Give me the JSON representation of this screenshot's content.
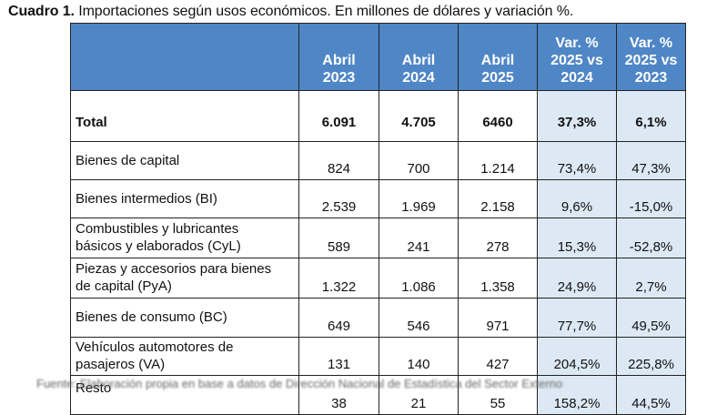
{
  "title": {
    "label": "Cuadro 1.",
    "text": " Importaciones según usos económicos. En millones de dólares y variación %."
  },
  "table": {
    "headers": [
      {
        "line1": "Abril",
        "line2": "2023"
      },
      {
        "line1": "Abril",
        "line2": "2024"
      },
      {
        "line1": "Abril",
        "line2": "2025"
      },
      {
        "line1": "Var. %",
        "line2": "2025 vs",
        "line3": "2024"
      },
      {
        "line1": "Var. %",
        "line2": "2025 vs",
        "line3": "2023"
      }
    ],
    "rows": [
      {
        "label": "Total",
        "v2023": "6.091",
        "v2024": "4.705",
        "v2025": "6460",
        "var24": "37,3%",
        "var23": "6,1%"
      },
      {
        "label": "Bienes de capital",
        "v2023": "824",
        "v2024": "700",
        "v2025": "1.214",
        "var24": "73,4%",
        "var23": "47,3%"
      },
      {
        "label": "Bienes intermedios (BI)",
        "v2023": "2.539",
        "v2024": "1.969",
        "v2025": "2.158",
        "var24": "9,6%",
        "var23": "-15,0%"
      },
      {
        "label_line1": "Combustibles y lubricantes",
        "label_line2": "básicos y elaborados (CyL)",
        "v2023": "589",
        "v2024": "241",
        "v2025": "278",
        "var24": "15,3%",
        "var23": "-52,8%"
      },
      {
        "label_line1": "Piezas y accesorios para bienes",
        "label_line2": "de capital (PyA)",
        "v2023": "1.322",
        "v2024": "1.086",
        "v2025": "1.358",
        "var24": "24,9%",
        "var23": "2,7%"
      },
      {
        "label": "Bienes de consumo (BC)",
        "v2023": "649",
        "v2024": "546",
        "v2025": "971",
        "var24": "77,7%",
        "var23": "49,5%"
      },
      {
        "label_line1": "Vehículos automotores de",
        "label_line2": "pasajeros (VA)",
        "v2023": "131",
        "v2024": "140",
        "v2025": "427",
        "var24": "204,5%",
        "var23": "225,8%"
      },
      {
        "label": "Resto",
        "v2023": "38",
        "v2024": "21",
        "v2025": "55",
        "var24": "158,2%",
        "var23": "44,5%"
      }
    ]
  },
  "footnote": "Fuente: Elaboración propia en base a datos de Dirección Nacional de Estadística del Sector Externo"
}
